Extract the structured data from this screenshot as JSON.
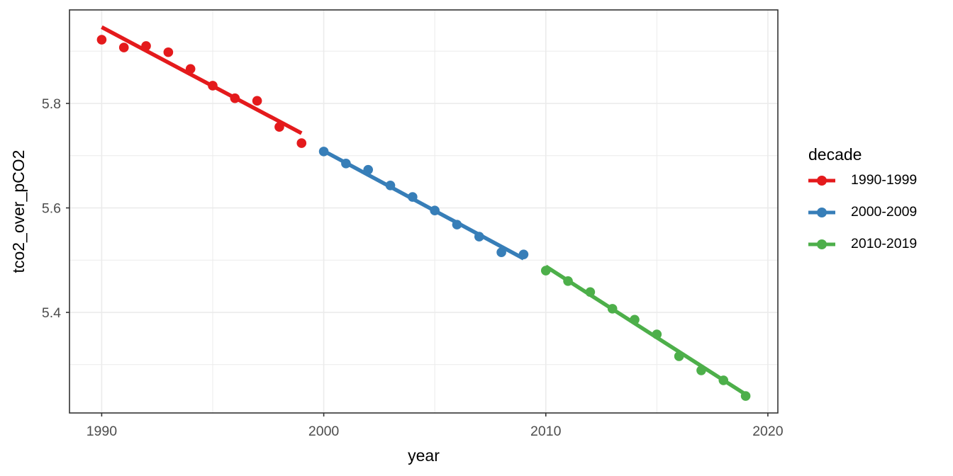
{
  "chart_data": {
    "type": "scatter",
    "title": "",
    "xlabel": "year",
    "ylabel": "tco2_over_pCO2",
    "legend_title": "decade",
    "legend_position": "right",
    "grid": true,
    "xlim": [
      1988.55,
      2020.45
    ],
    "ylim": [
      5.2075,
      5.979
    ],
    "x_major_ticks": {
      "values": [
        1990,
        2000,
        2010,
        2020
      ],
      "labels": [
        "1990",
        "2000",
        "2010",
        "2020"
      ]
    },
    "x_minor_ticks": [
      1995,
      2005,
      2015
    ],
    "y_major_ticks": {
      "values": [
        5.4,
        5.6,
        5.8
      ],
      "labels": [
        "5.4",
        "5.6",
        "5.8"
      ]
    },
    "y_minor_ticks": [
      5.3,
      5.5,
      5.7,
      5.9
    ],
    "series": [
      {
        "name": "1990-1999",
        "color": "#E41A1C",
        "x": [
          1990,
          1991,
          1992,
          1993,
          1994,
          1995,
          1996,
          1997,
          1998,
          1999
        ],
        "y": [
          5.922,
          5.907,
          5.91,
          5.898,
          5.866,
          5.834,
          5.81,
          5.805,
          5.755,
          5.724
        ],
        "trend": {
          "x": [
            1990,
            1999
          ],
          "y": [
            5.946,
            5.743
          ]
        }
      },
      {
        "name": "2000-2009",
        "color": "#377EB8",
        "x": [
          2000,
          2001,
          2002,
          2003,
          2004,
          2005,
          2006,
          2007,
          2008,
          2009
        ],
        "y": [
          5.708,
          5.685,
          5.673,
          5.643,
          5.621,
          5.595,
          5.568,
          5.545,
          5.515,
          5.511
        ],
        "trend": {
          "x": [
            2000,
            2009
          ],
          "y": [
            5.709,
            5.503
          ]
        }
      },
      {
        "name": "2010-2019",
        "color": "#4DAF4A",
        "x": [
          2010,
          2011,
          2012,
          2013,
          2014,
          2015,
          2016,
          2017,
          2018,
          2019
        ],
        "y": [
          5.48,
          5.46,
          5.439,
          5.407,
          5.386,
          5.358,
          5.316,
          5.289,
          5.27,
          5.24
        ],
        "trend": {
          "x": [
            2010,
            2019
          ],
          "y": [
            5.488,
            5.243
          ]
        }
      }
    ],
    "style": {
      "background": "#FFFFFF",
      "panel_background": "#FFFFFF",
      "panel_border": "#333333",
      "grid_color": "#EBEBEB",
      "tick_mark_color": "#333333",
      "tick_label_color": "#4D4D4D",
      "axis_title_color": "#000000",
      "point_radius": 6.8,
      "trend_width": 5.5
    }
  }
}
